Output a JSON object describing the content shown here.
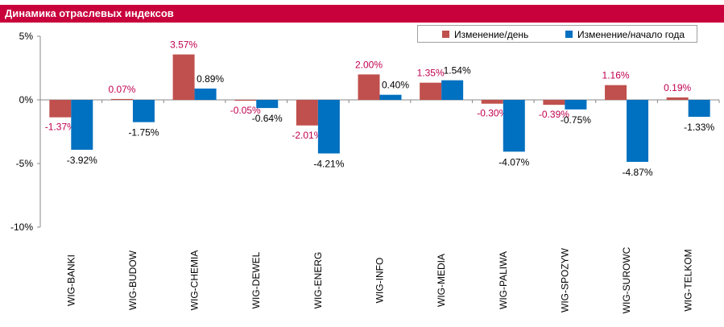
{
  "header": {
    "title": "Динамика отраслевых индексов",
    "color": "#c8003c"
  },
  "chart_data": {
    "type": "bar",
    "categories": [
      "WIG-BANKI",
      "WIG-BUDOW",
      "WIG-CHEMIA",
      "WIG-DEWEL",
      "WIG-ENERG",
      "WIG-INFO",
      "WIG-MEDIA",
      "WIG-PALIWA",
      "WIG-SPOZYW",
      "WIG-SUROWC",
      "WIG-TELKOM"
    ],
    "series": [
      {
        "name": "Изменение/день",
        "color": "#c0504d",
        "label_color": "#c00050",
        "values": [
          -1.37,
          0.07,
          3.57,
          -0.05,
          -2.01,
          2.0,
          1.35,
          -0.3,
          -0.39,
          1.16,
          0.19
        ],
        "labels": [
          "-1.37%",
          "0.07%",
          "3.57%",
          "-0.05%",
          "-2.01%",
          "2.00%",
          "1.35%",
          "-0.30%",
          "-0.39%",
          "1.16%",
          "0.19%"
        ]
      },
      {
        "name": "Изменение/начало года",
        "color": "#0070c0",
        "label_color": "#000000",
        "values": [
          -3.92,
          -1.75,
          0.89,
          -0.64,
          -4.21,
          0.4,
          1.54,
          -4.07,
          -0.75,
          -4.87,
          -1.33
        ],
        "labels": [
          "-3.92%",
          "-1.75%",
          "0.89%",
          "-0.64%",
          "-4.21%",
          "0.40%",
          "1.54%",
          "-4.07%",
          "-0.75%",
          "-4.87%",
          "-1.33%"
        ]
      }
    ],
    "y_ticks": [
      5,
      0,
      -5,
      -10
    ],
    "y_tick_labels": [
      "5%",
      "0%",
      "-5%",
      "-10%"
    ],
    "ylim": [
      -10,
      5
    ],
    "grid": false,
    "legend_position": "top-right"
  }
}
